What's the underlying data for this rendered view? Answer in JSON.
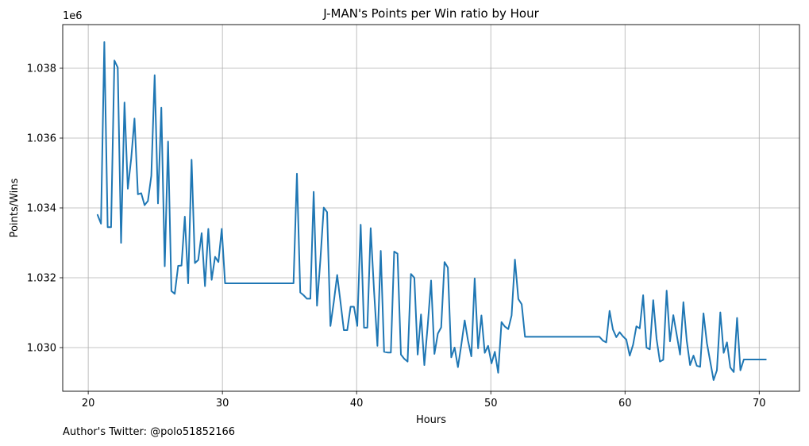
{
  "chart_data": {
    "type": "line",
    "title": "J-MAN's Points per Win ratio by Hour",
    "xlabel": "Hours",
    "ylabel": "Points/Wins",
    "y_offset_label": "1e6",
    "xlim": [
      18.1,
      73.0
    ],
    "ylim": [
      1.02875,
      1.03925
    ],
    "x_ticks": [
      20,
      30,
      40,
      50,
      60,
      70
    ],
    "x_tick_labels": [
      "20",
      "30",
      "40",
      "50",
      "60",
      "70"
    ],
    "y_ticks": [
      1.03,
      1.032,
      1.034,
      1.036,
      1.038
    ],
    "y_tick_labels": [
      "1.030",
      "1.032",
      "1.034",
      "1.036",
      "1.038"
    ],
    "grid": true,
    "series": [
      {
        "color": "#1f77b4",
        "x": [
          20.7,
          20.95,
          21.2,
          21.45,
          21.7,
          21.95,
          22.2,
          22.45,
          22.7,
          22.95,
          23.2,
          23.45,
          23.7,
          23.95,
          24.2,
          24.45,
          24.7,
          24.95,
          25.2,
          25.45,
          25.7,
          25.95,
          26.2,
          26.45,
          26.7,
          26.95,
          27.2,
          27.45,
          27.7,
          27.95,
          28.2,
          28.45,
          28.7,
          28.95,
          29.2,
          29.45,
          29.7,
          29.95,
          30.2,
          35.3,
          35.55,
          35.8,
          36.05,
          36.3,
          36.55,
          36.8,
          37.05,
          37.3,
          37.55,
          37.8,
          38.05,
          38.3,
          38.55,
          38.8,
          39.05,
          39.3,
          39.55,
          39.8,
          40.05,
          40.3,
          40.55,
          40.8,
          41.05,
          41.3,
          41.55,
          41.8,
          42.05,
          42.3,
          42.55,
          42.8,
          43.05,
          43.3,
          43.55,
          43.8,
          44.05,
          44.3,
          44.55,
          44.8,
          45.05,
          45.3,
          45.55,
          45.8,
          46.05,
          46.3,
          46.55,
          46.8,
          47.05,
          47.3,
          47.55,
          47.8,
          48.05,
          48.3,
          48.55,
          48.8,
          49.05,
          49.3,
          49.55,
          49.8,
          50.05,
          50.3,
          50.55,
          50.8,
          51.05,
          51.3,
          51.55,
          51.8,
          52.05,
          52.3,
          52.55,
          58.1,
          58.35,
          58.6,
          58.85,
          59.1,
          59.35,
          59.6,
          59.85,
          60.1,
          60.35,
          60.6,
          60.85,
          61.1,
          61.35,
          61.6,
          61.85,
          62.1,
          62.35,
          62.6,
          62.85,
          63.1,
          63.35,
          63.6,
          63.85,
          64.1,
          64.35,
          64.6,
          64.85,
          65.1,
          65.35,
          65.6,
          65.85,
          66.1,
          66.35,
          66.6,
          66.85,
          67.1,
          67.35,
          67.6,
          67.85,
          68.1,
          68.35,
          68.6,
          68.85,
          69.1,
          70.5
        ],
        "y": [
          1.0338,
          1.03355,
          1.03875,
          1.03345,
          1.03345,
          1.03822,
          1.03802,
          1.033,
          1.03702,
          1.03455,
          1.0354,
          1.03656,
          1.03439,
          1.03442,
          1.03408,
          1.0342,
          1.03492,
          1.0378,
          1.03413,
          1.03687,
          1.03233,
          1.0359,
          1.03162,
          1.03154,
          1.03234,
          1.03235,
          1.03375,
          1.03184,
          1.03538,
          1.03242,
          1.03251,
          1.03328,
          1.03176,
          1.0334,
          1.03194,
          1.0326,
          1.03245,
          1.0334,
          1.03184,
          1.03184,
          1.03498,
          1.03158,
          1.0315,
          1.0314,
          1.0314,
          1.03446,
          1.0312,
          1.0325,
          1.03401,
          1.03388,
          1.03062,
          1.0313,
          1.03208,
          1.0313,
          1.0305,
          1.0305,
          1.03117,
          1.03117,
          1.03062,
          1.03352,
          1.03057,
          1.03057,
          1.03342,
          1.0316,
          1.03005,
          1.03277,
          1.02988,
          1.02986,
          1.02986,
          1.03275,
          1.03269,
          1.0298,
          1.02968,
          1.0296,
          1.03211,
          1.032,
          1.0298,
          1.03095,
          1.0295,
          1.03065,
          1.03192,
          1.02982,
          1.0304,
          1.03058,
          1.03245,
          1.03229,
          1.02972,
          1.03,
          1.02944,
          1.03007,
          1.03078,
          1.0302,
          1.02975,
          1.03198,
          1.02998,
          1.03092,
          1.02985,
          1.03005,
          1.02955,
          1.02988,
          1.02928,
          1.03073,
          1.0306,
          1.03053,
          1.03092,
          1.03252,
          1.03139,
          1.03124,
          1.03031,
          1.03031,
          1.0302,
          1.03015,
          1.03105,
          1.03052,
          1.0303,
          1.03044,
          1.03032,
          1.03023,
          1.02977,
          1.03008,
          1.03061,
          1.03055,
          1.0315,
          1.03,
          1.02995,
          1.03136,
          1.03025,
          1.0296,
          1.02965,
          1.03163,
          1.03018,
          1.03093,
          1.03038,
          1.0298,
          1.0313,
          1.0302,
          1.0295,
          1.02977,
          1.02948,
          1.02945,
          1.03098,
          1.03013,
          1.0296,
          1.02907,
          1.02935,
          1.03101,
          1.02985,
          1.03015,
          1.02943,
          1.0293,
          1.03085,
          1.02935,
          1.02966,
          1.02966,
          1.02966
        ]
      }
    ]
  },
  "footer": {
    "author_text": "Author's Twitter: @polo51852166"
  }
}
